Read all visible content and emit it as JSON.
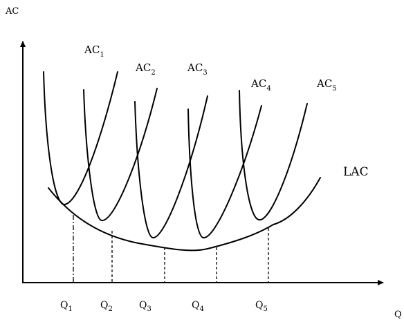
{
  "figure": {
    "y_axis_title": "AC",
    "x_axis_title": "Q",
    "lac_label": "LAC",
    "short_run_curves": [
      {
        "base": "AC",
        "sub": "1"
      },
      {
        "base": "AC",
        "sub": "2"
      },
      {
        "base": "AC",
        "sub": "3"
      },
      {
        "base": "AC",
        "sub": "4"
      },
      {
        "base": "AC",
        "sub": "5"
      }
    ],
    "quantities": [
      {
        "base": "Q",
        "sub": "1",
        "dash": "dashdot"
      },
      {
        "base": "Q",
        "sub": "2",
        "dash": "dashed"
      },
      {
        "base": "Q",
        "sub": "3",
        "dash": "dashed"
      },
      {
        "base": "Q",
        "sub": "4",
        "dash": "dashed"
      },
      {
        "base": "Q",
        "sub": "5",
        "dash": "dashed"
      }
    ]
  }
}
